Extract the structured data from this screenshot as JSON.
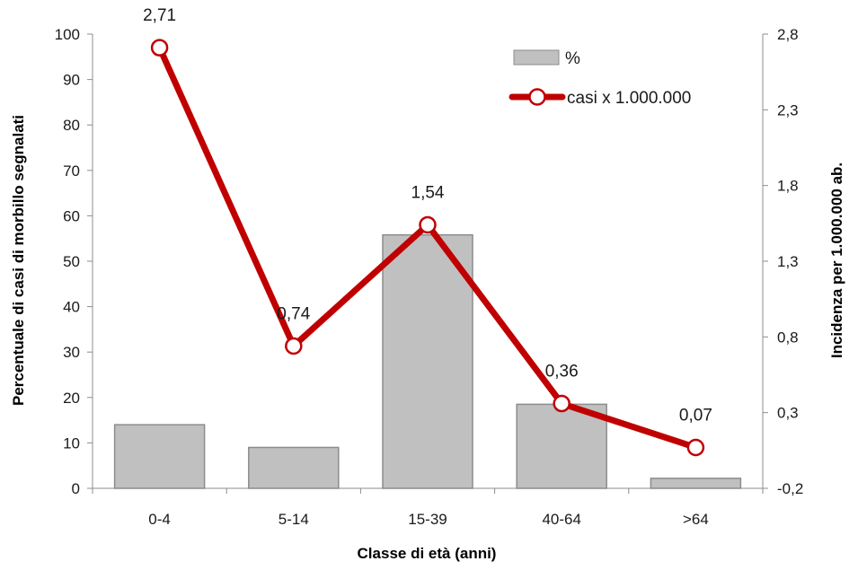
{
  "chart_data": {
    "type": "bar+line",
    "categories": [
      "0-4",
      "5-14",
      "15-39",
      "40-64",
      ">64"
    ],
    "series": [
      {
        "name": "%",
        "type": "bar",
        "axis": "left",
        "values": [
          14,
          9,
          55.8,
          18.5,
          2.2
        ],
        "color": "#c0c0c0",
        "border": "#8c8c8c"
      },
      {
        "name": "casi x 1.000.000",
        "type": "line",
        "axis": "right",
        "values": [
          2.71,
          0.74,
          1.54,
          0.36,
          0.07
        ],
        "data_labels": [
          "2,71",
          "0,74",
          "1,54",
          "0,36",
          "0,07"
        ],
        "color": "#c00000"
      }
    ],
    "xlabel": "Classe di età (anni)",
    "ylabel": "Percentuale di casi di morbillo segnalati",
    "y2label": "Incidenza per 1.000.000 ab.",
    "ylim": [
      0,
      100
    ],
    "y_ticks": [
      0,
      10,
      20,
      30,
      40,
      50,
      60,
      70,
      80,
      90,
      100
    ],
    "y2lim": [
      -0.2,
      2.8
    ],
    "y2_ticks": [
      -0.2,
      0.3,
      0.8,
      1.3,
      1.8,
      2.3,
      2.8
    ],
    "y2_tick_labels": [
      "-0,2",
      "0,3",
      "0,8",
      "1,3",
      "1,8",
      "2,3",
      "2,8"
    ],
    "legend": "top-right",
    "grid": false
  }
}
